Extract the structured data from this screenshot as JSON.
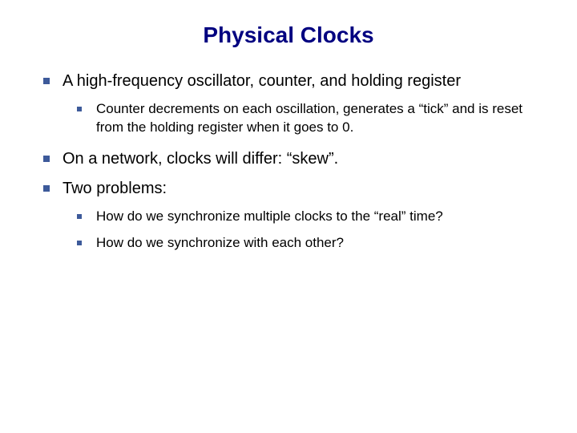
{
  "title": "Physical Clocks",
  "colors": {
    "title": "#000080",
    "bullet": "#3d5a9a",
    "text": "#000000",
    "background": "#ffffff"
  },
  "typography": {
    "title_font": "Comic Sans MS",
    "title_size_pt": 28,
    "body_font": "Verdana",
    "level1_size_pt": 20,
    "level2_size_pt": 17
  },
  "bullets": [
    {
      "text": "A high-frequency oscillator, counter, and holding register",
      "children": [
        {
          "text": "Counter decrements on each oscillation, generates a “tick” and is reset from the holding register when it goes to 0."
        }
      ]
    },
    {
      "text": "On a network, clocks will differ: “skew”.",
      "children": []
    },
    {
      "text": "Two problems:",
      "children": [
        {
          "text": "How do we synchronize multiple clocks to the “real” time?"
        },
        {
          "text": "How do we synchronize with each other?"
        }
      ]
    }
  ]
}
